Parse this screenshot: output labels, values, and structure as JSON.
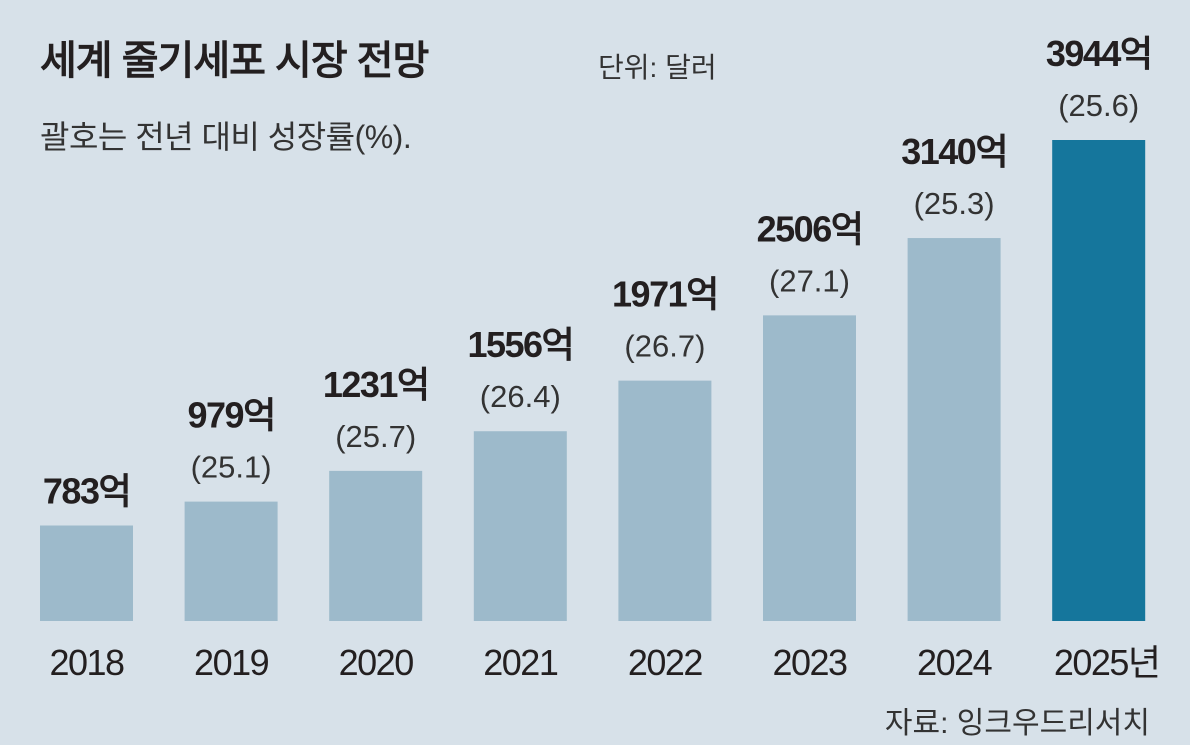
{
  "chart_data": {
    "type": "bar",
    "title": "세계 줄기세포 시장 전망",
    "unit_label": "단위: 달러",
    "subtitle": "괄호는 전년 대비 성장률(%).",
    "source": "자료: 잉크우드리서치",
    "categories": [
      "2018",
      "2019",
      "2020",
      "2021",
      "2022",
      "2023",
      "2024",
      "2025년"
    ],
    "values": [
      783,
      979,
      1231,
      1556,
      1971,
      2506,
      3140,
      3944
    ],
    "value_labels": [
      "783억",
      "979억",
      "1231억",
      "1556억",
      "1971억",
      "2506억",
      "3140억",
      "3944억"
    ],
    "growth_labels": [
      "",
      "(25.1)",
      "(25.7)",
      "(26.4)",
      "(26.7)",
      "(27.1)",
      "(25.3)",
      "(25.6)"
    ],
    "growth": [
      null,
      25.1,
      25.7,
      26.4,
      26.7,
      27.1,
      25.3,
      25.6
    ],
    "ylim": [
      0,
      3944
    ],
    "grid": false,
    "colors": {
      "bar": "#9dbacb",
      "highlight": "#15769c",
      "background": "#d7e1e9"
    }
  }
}
